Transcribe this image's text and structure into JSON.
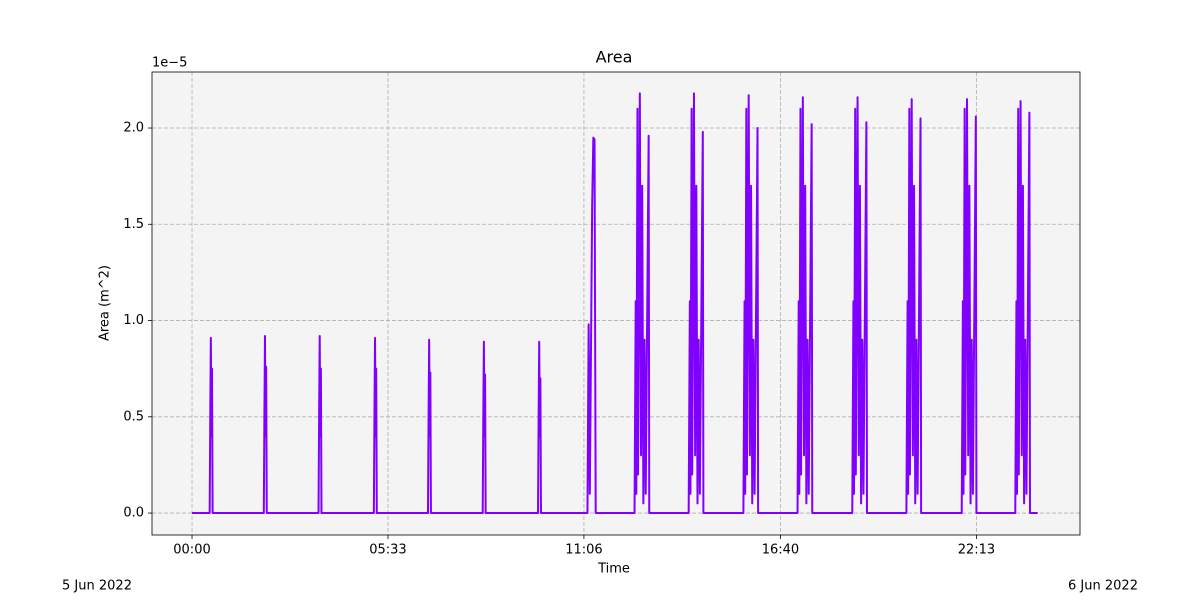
{
  "chart_data": {
    "type": "line",
    "title": "Area",
    "x_label": "Time",
    "y_label": "Area (m^2)",
    "y_offset_label": "1e−5",
    "annotations": [
      "5 Jun 2022",
      "6 Jun 2022"
    ],
    "grid": true,
    "xlim": [
      -68,
      1509
    ],
    "ylim": [
      -1.14e-06,
      2.291e-05
    ],
    "xticks": [
      {
        "value": 0,
        "label": "00:00"
      },
      {
        "value": 333,
        "label": "05:33"
      },
      {
        "value": 666,
        "label": "11:06"
      },
      {
        "value": 1000,
        "label": "16:40"
      },
      {
        "value": 1333,
        "label": "22:13"
      }
    ],
    "yticks": [
      {
        "value": 0,
        "label": "0.0"
      },
      {
        "value": 5e-06,
        "label": "0.5"
      },
      {
        "value": 1e-05,
        "label": "1.0"
      },
      {
        "value": 1.5e-05,
        "label": "1.5"
      },
      {
        "value": 2e-05,
        "label": "2.0"
      }
    ],
    "series": [
      {
        "color": "#8000ff",
        "x": [
          0,
          30,
          31,
          32,
          33,
          34,
          35,
          122,
          123,
          124,
          125,
          126,
          127,
          215,
          216,
          217,
          218,
          219,
          220,
          309,
          310,
          311,
          312,
          313,
          314,
          401,
          402,
          403,
          404,
          405,
          406,
          494,
          495,
          496,
          497,
          498,
          499,
          588,
          589,
          590,
          591,
          592,
          593,
          672,
          674,
          676,
          680,
          682,
          684,
          686,
          752,
          754,
          755,
          757,
          758,
          761,
          763,
          765,
          767,
          769,
          771,
          776,
          777,
          844,
          846,
          847,
          849,
          850,
          853,
          855,
          857,
          859,
          861,
          863,
          868,
          869,
          937,
          939,
          940,
          942,
          943,
          946,
          948,
          950,
          952,
          954,
          956,
          961,
          962,
          1029,
          1031,
          1032,
          1034,
          1035,
          1038,
          1040,
          1042,
          1044,
          1046,
          1048,
          1053,
          1054,
          1122,
          1124,
          1125,
          1127,
          1128,
          1131,
          1133,
          1135,
          1137,
          1139,
          1141,
          1146,
          1147,
          1214,
          1216,
          1217,
          1219,
          1220,
          1223,
          1225,
          1227,
          1229,
          1231,
          1233,
          1238,
          1239,
          1308,
          1310,
          1311,
          1313,
          1314,
          1317,
          1319,
          1321,
          1323,
          1325,
          1327,
          1332,
          1333,
          1399,
          1401,
          1402,
          1404,
          1405,
          1408,
          1410,
          1412,
          1414,
          1416,
          1418,
          1423,
          1424,
          1437
        ],
        "values": [
          0,
          0,
          5e-06,
          9.1e-06,
          4e-06,
          7.5e-06,
          0,
          0,
          5e-06,
          9.2e-06,
          4e-06,
          7.6e-06,
          0,
          0,
          5e-06,
          9.2e-06,
          4e-06,
          7.5e-06,
          0,
          0,
          5e-06,
          9.1e-06,
          4e-06,
          7.5e-06,
          0,
          0,
          5e-06,
          9e-06,
          4e-06,
          7.3e-06,
          0,
          0,
          5e-06,
          8.9e-06,
          4e-06,
          7.2e-06,
          0,
          0,
          5e-06,
          8.9e-06,
          4e-06,
          7e-06,
          0,
          0,
          9.8e-06,
          1e-06,
          1.6e-05,
          1.95e-05,
          1.94e-05,
          0,
          0,
          1.1e-05,
          1e-06,
          2.1e-05,
          2e-06,
          2.18e-05,
          3e-06,
          1.7e-05,
          5e-07,
          9e-06,
          1e-06,
          1.96e-05,
          0,
          0,
          1.1e-05,
          1e-06,
          2.1e-05,
          2e-06,
          2.18e-05,
          3e-06,
          1.7e-05,
          5e-07,
          9e-06,
          1e-06,
          1.98e-05,
          0,
          0,
          1.1e-05,
          1e-06,
          2.1e-05,
          2e-06,
          2.17e-05,
          3e-06,
          1.7e-05,
          5e-07,
          9e-06,
          1e-06,
          2e-05,
          0,
          0,
          1.1e-05,
          1e-06,
          2.1e-05,
          2e-06,
          2.16e-05,
          3e-06,
          1.7e-05,
          5e-07,
          9e-06,
          1e-06,
          2.02e-05,
          0,
          0,
          1.1e-05,
          1e-06,
          2.1e-05,
          2e-06,
          2.16e-05,
          3e-06,
          1.7e-05,
          5e-07,
          9e-06,
          1e-06,
          2.03e-05,
          0,
          0,
          1.1e-05,
          1e-06,
          2.1e-05,
          2e-06,
          2.15e-05,
          3e-06,
          1.7e-05,
          5e-07,
          9e-06,
          1e-06,
          2.05e-05,
          0,
          0,
          1.1e-05,
          1e-06,
          2.1e-05,
          2e-06,
          2.15e-05,
          3e-06,
          1.7e-05,
          5e-07,
          9e-06,
          1e-06,
          2.06e-05,
          0,
          0,
          1.1e-05,
          1e-06,
          2.1e-05,
          2e-06,
          2.14e-05,
          3e-06,
          1.7e-05,
          5e-07,
          9e-06,
          1e-06,
          2.08e-05,
          0,
          0
        ]
      }
    ]
  }
}
